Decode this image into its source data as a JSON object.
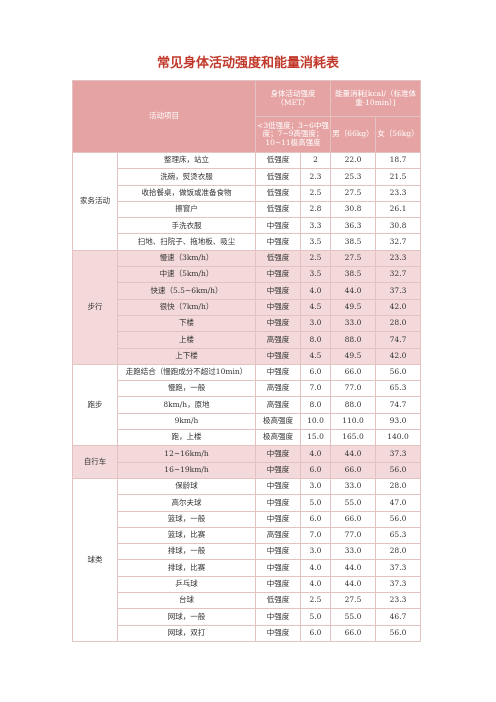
{
  "title": "常见身体活动强度和能量消耗表",
  "table": {
    "header": {
      "activity": "活动项目",
      "intensity": "身体活动强度（MET）",
      "energy": "能量消耗[kcal/（标准体重·10min）]",
      "intensity_note": "<3低强度；3~6中强度；7~9高强度；10~11极高强度",
      "male": "男（66kg）",
      "female": "女（56kg）"
    },
    "groups": [
      {
        "name": "家务活动",
        "rows": [
          [
            "整理床，站立",
            "低强度",
            "2",
            "22.0",
            "18.7"
          ],
          [
            "洗碗，熨烫衣服",
            "低强度",
            "2.3",
            "25.3",
            "21.5"
          ],
          [
            "收拾餐桌，做饭或准备食物",
            "低强度",
            "2.5",
            "27.5",
            "23.3"
          ],
          [
            "擦窗户",
            "低强度",
            "2.8",
            "30.8",
            "26.1"
          ],
          [
            "手洗衣服",
            "中强度",
            "3.3",
            "36.3",
            "30.8"
          ],
          [
            "扫地、扫院子、拖地板、吸尘",
            "中强度",
            "3.5",
            "38.5",
            "32.7"
          ]
        ]
      },
      {
        "name": "步行",
        "rows": [
          [
            "慢速（3km/h）",
            "低强度",
            "2.5",
            "27.5",
            "23.3"
          ],
          [
            "中速（5km/h）",
            "中强度",
            "3.5",
            "38.5",
            "32.7"
          ],
          [
            "快速（5.5~6km/h）",
            "中强度",
            "4.0",
            "44.0",
            "37.3"
          ],
          [
            "很快（7km/h）",
            "中强度",
            "4.5",
            "49.5",
            "42.0"
          ],
          [
            "下楼",
            "中强度",
            "3.0",
            "33.0",
            "28.0"
          ],
          [
            "上楼",
            "高强度",
            "8.0",
            "88.0",
            "74.7"
          ],
          [
            "上下楼",
            "中强度",
            "4.5",
            "49.5",
            "42.0"
          ]
        ]
      },
      {
        "name": "跑步",
        "rows": [
          [
            "走跑结合（慢跑成分不超过10min）",
            "中强度",
            "6.0",
            "66.0",
            "56.0"
          ],
          [
            "慢跑，一般",
            "高强度",
            "7.0",
            "77.0",
            "65.3"
          ],
          [
            "8km/h，原地",
            "高强度",
            "8.0",
            "88.0",
            "74.7"
          ],
          [
            "9km/h",
            "极高强度",
            "10.0",
            "110.0",
            "93.0"
          ],
          [
            "跑，上楼",
            "极高强度",
            "15.0",
            "165.0",
            "140.0"
          ]
        ]
      },
      {
        "name": "自行车",
        "rows": [
          [
            "12~16km/h",
            "中强度",
            "4.0",
            "44.0",
            "37.3"
          ],
          [
            "16~19km/h",
            "中强度",
            "6.0",
            "66.0",
            "56.0"
          ]
        ]
      },
      {
        "name": "球类",
        "rows": [
          [
            "保龄球",
            "中强度",
            "3.0",
            "33.0",
            "28.0"
          ],
          [
            "高尔夫球",
            "中强度",
            "5.0",
            "55.0",
            "47.0"
          ],
          [
            "篮球，一般",
            "中强度",
            "6.0",
            "66.0",
            "56.0"
          ],
          [
            "篮球，比赛",
            "高强度",
            "7.0",
            "77.0",
            "65.3"
          ],
          [
            "排球，一般",
            "中强度",
            "3.0",
            "33.0",
            "28.0"
          ],
          [
            "排球，比赛",
            "中强度",
            "4.0",
            "44.0",
            "37.3"
          ],
          [
            "乒乓球",
            "中强度",
            "4.0",
            "44.0",
            "37.3"
          ],
          [
            "台球",
            "低强度",
            "2.5",
            "27.5",
            "23.3"
          ],
          [
            "网球，一般",
            "中强度",
            "5.0",
            "55.0",
            "46.7"
          ],
          [
            "网球，双打",
            "中强度",
            "6.0",
            "66.0",
            "56.0"
          ]
        ]
      }
    ]
  }
}
